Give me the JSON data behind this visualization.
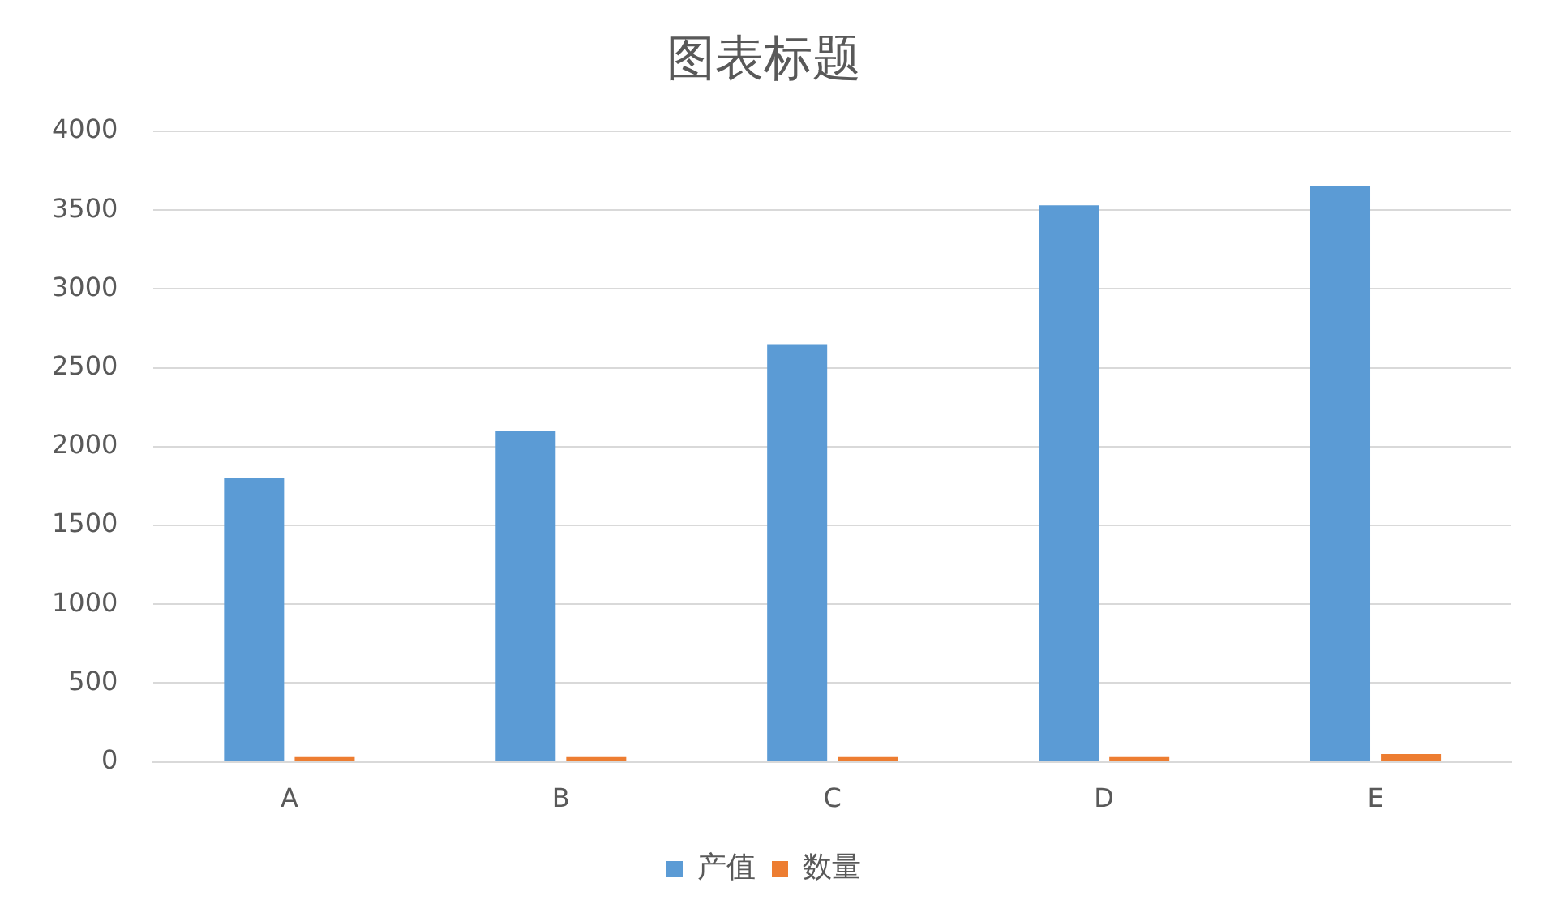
{
  "chart_data": {
    "type": "bar",
    "title": "图表标题",
    "categories": [
      "A",
      "B",
      "C",
      "D",
      "E"
    ],
    "series": [
      {
        "name": "产值",
        "color": "#5b9bd5",
        "values": [
          1800,
          2100,
          2650,
          3530,
          3650
        ]
      },
      {
        "name": "数量",
        "color": "#ed7d31",
        "values": [
          30,
          30,
          30,
          30,
          50
        ]
      }
    ],
    "ylim": [
      0,
      4000
    ],
    "yticks": [
      0,
      500,
      1000,
      1500,
      2000,
      2500,
      3000,
      3500,
      4000
    ],
    "grid": "y",
    "legend": "bottom"
  }
}
